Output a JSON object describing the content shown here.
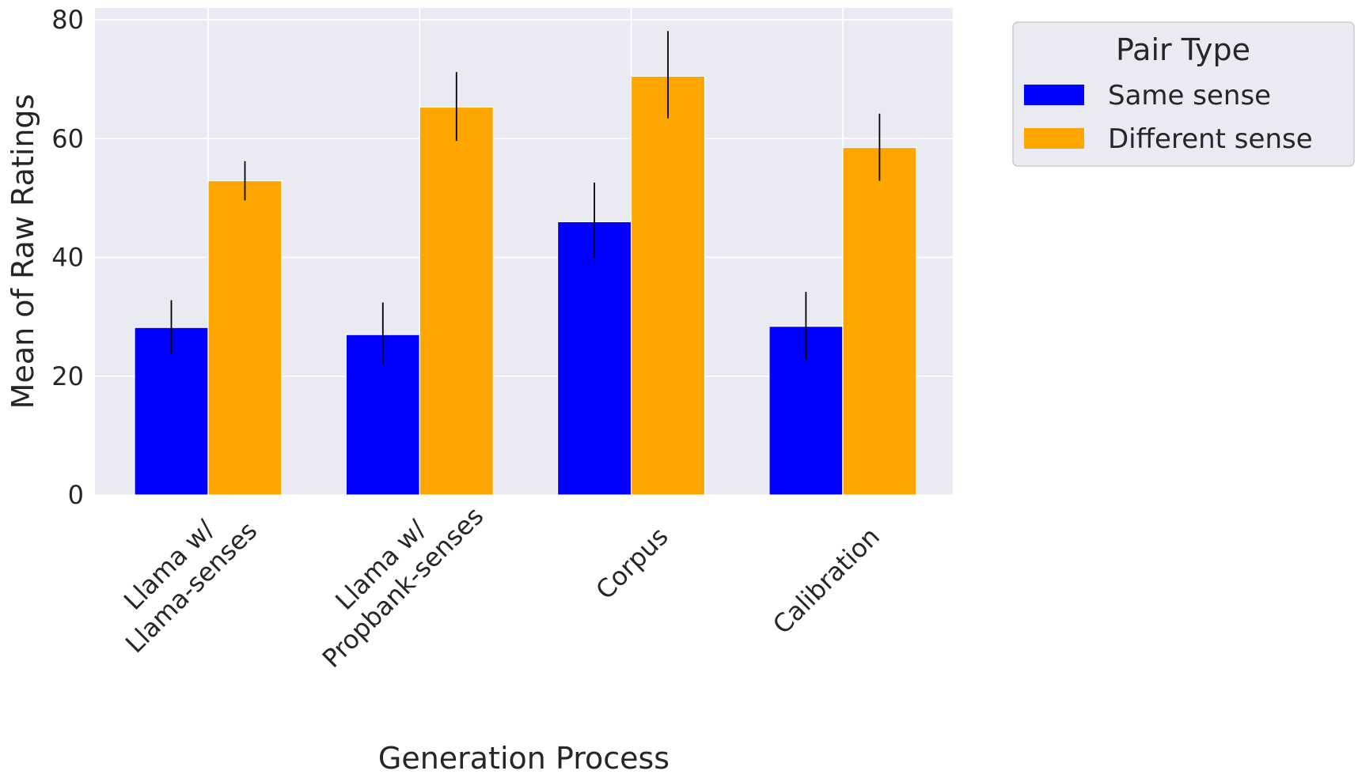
{
  "chart_data": {
    "type": "bar",
    "title": "",
    "xlabel": "Generation Process",
    "ylabel": "Mean of Raw Ratings",
    "categories": [
      [
        "Llama w/",
        "Llama-senses"
      ],
      [
        "Llama w/",
        "Propbank-senses"
      ],
      [
        "Corpus"
      ],
      [
        "Calibration"
      ]
    ],
    "series": [
      {
        "name": "Same sense",
        "color": "#0000ff",
        "values": [
          28.2,
          27.0,
          46.0,
          28.4
        ],
        "err_low": [
          23.8,
          22.0,
          39.8,
          22.8
        ],
        "err_high": [
          32.8,
          32.4,
          52.6,
          34.2
        ]
      },
      {
        "name": "Different sense",
        "color": "#ffa500",
        "values": [
          52.9,
          65.3,
          70.5,
          58.5
        ],
        "err_low": [
          49.6,
          59.6,
          63.4,
          52.9
        ],
        "err_high": [
          56.2,
          71.2,
          78.1,
          64.2
        ]
      }
    ],
    "ylim": [
      0,
      82
    ],
    "yticks": [
      0,
      20,
      40,
      60,
      80
    ],
    "grid": true,
    "legend": {
      "title": "Pair Type",
      "placement": "outside-top-right"
    },
    "colors": {
      "background": "#eaeaf2",
      "grid": "#ffffff",
      "errorbar": "#000000",
      "text": "#262626"
    }
  }
}
